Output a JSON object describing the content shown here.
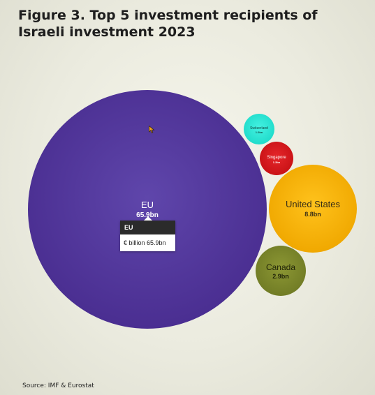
{
  "header": {
    "title": "Figure 3. Top 5 investment recipients of Israeli investment 2023"
  },
  "footer": {
    "source": "Source: IMF & Eurostat"
  },
  "tooltip": {
    "header": "EU",
    "body": "€ billion 65.9bn"
  },
  "chart_data": {
    "type": "bubble",
    "title": "Figure 3. Top 5 investment recipients of Israeli investment 2023",
    "unit": "€ billion",
    "series": [
      {
        "name": "EU",
        "value": 65.9,
        "value_label": "65.9bn",
        "color": "#553a9c"
      },
      {
        "name": "United States",
        "value": 8.8,
        "value_label": "8.8bn",
        "color": "#f6b50d"
      },
      {
        "name": "Canada",
        "value": 2.9,
        "value_label": "2.9bn",
        "color": "#7f8a2c"
      },
      {
        "name": "Singapore",
        "value": 1.3,
        "value_label": "1.3bn",
        "color": "#d81a1d"
      },
      {
        "name": "Switzerland",
        "value": 1.0,
        "value_label": "1.0bn",
        "color": "#2ee6d6"
      }
    ]
  }
}
